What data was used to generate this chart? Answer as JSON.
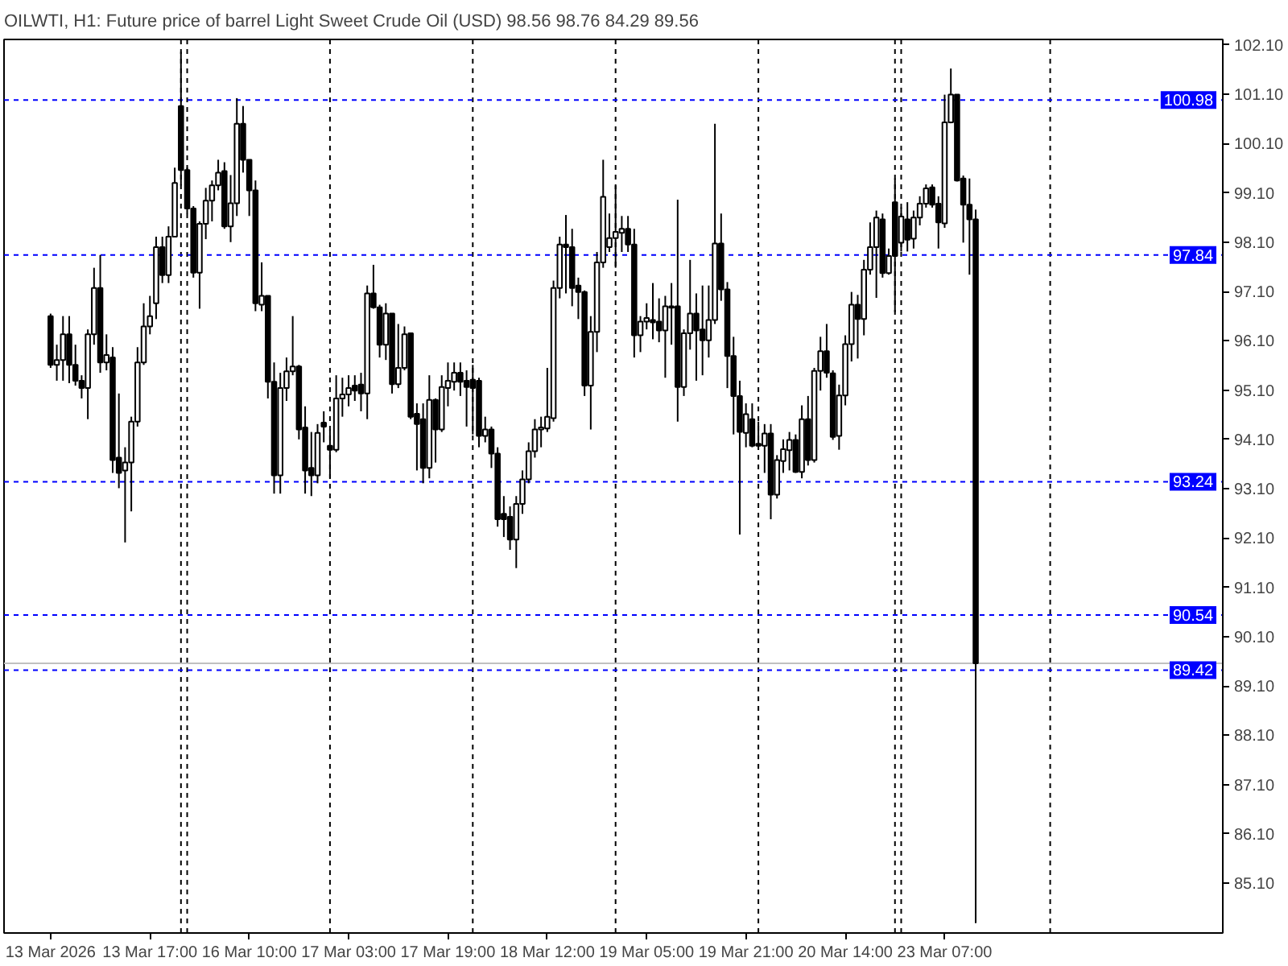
{
  "chart_data": {
    "type": "candlestick",
    "title": "OILWTI, H1: Future price of barrel Light Sweet Crude Oil (USD) 98.56 98.76 84.29 89.56",
    "color": "#000000",
    "categories": [
      "13 Mar 2026",
      null,
      null,
      null,
      null,
      null,
      null,
      null,
      null,
      null,
      null,
      null,
      null,
      null,
      null,
      null,
      "13 Mar 17:00",
      null,
      null,
      null,
      null,
      null,
      null,
      null,
      null,
      null,
      null,
      null,
      null,
      null,
      null,
      null,
      "16 Mar 10:00",
      null,
      null,
      null,
      null,
      null,
      null,
      null,
      null,
      null,
      null,
      null,
      null,
      null,
      null,
      null,
      "17 Mar 03:00",
      null,
      null,
      null,
      null,
      null,
      null,
      null,
      null,
      null,
      null,
      null,
      null,
      null,
      null,
      null,
      "17 Mar 19:00",
      null,
      null,
      null,
      null,
      null,
      null,
      null,
      null,
      null,
      null,
      null,
      null,
      null,
      null,
      null,
      "18 Mar 12:00",
      null,
      null,
      null,
      null,
      null,
      null,
      null,
      null,
      null,
      null,
      null,
      null,
      null,
      null,
      null,
      "19 Mar 05:00",
      null,
      null,
      null,
      null,
      null,
      null,
      null,
      null,
      null,
      null,
      null,
      null,
      null,
      null,
      null,
      "19 Mar 21:00",
      null,
      null,
      null,
      null,
      null,
      null,
      null,
      null,
      null,
      null,
      null,
      null,
      null,
      null,
      null,
      "20 Mar 14:00",
      null,
      null,
      null,
      null,
      null,
      null,
      null,
      null,
      null,
      null,
      null,
      null,
      null,
      null,
      null,
      "23 Mar 07:00",
      null,
      null,
      null,
      null,
      null,
      null,
      null,
      null,
      null,
      null,
      null,
      null,
      null,
      null,
      null,
      null,
      null,
      null,
      null,
      null,
      null,
      null,
      null,
      null,
      null,
      null,
      null,
      null,
      null,
      null,
      null,
      null,
      null,
      null,
      null,
      null,
      null,
      null,
      null,
      null,
      null,
      null,
      null,
      null
    ],
    "ohlc": [
      [
        96.6,
        96.65,
        95.55,
        95.61
      ],
      [
        95.61,
        96.02,
        95.29,
        95.71
      ],
      [
        95.71,
        96.6,
        95.29,
        96.23
      ],
      [
        96.23,
        96.6,
        95.24,
        95.61
      ],
      [
        95.61,
        96.02,
        95.19,
        95.29
      ],
      [
        95.29,
        95.4,
        94.93,
        95.14
      ],
      [
        95.14,
        96.33,
        94.51,
        96.23
      ],
      [
        96.23,
        97.58,
        96.02,
        97.17
      ],
      [
        97.17,
        97.84,
        95.45,
        95.66
      ],
      [
        95.66,
        96.23,
        95.5,
        95.81
      ],
      [
        95.76,
        95.97,
        93.42,
        93.68
      ],
      [
        93.73,
        95.03,
        93.11,
        93.42
      ],
      [
        93.47,
        93.94,
        92.01,
        93.63
      ],
      [
        93.63,
        94.56,
        92.64,
        94.46
      ],
      [
        94.46,
        95.97,
        94.36,
        95.66
      ],
      [
        95.66,
        96.86,
        95.61,
        96.39
      ],
      [
        96.39,
        97.01,
        96.23,
        96.6
      ],
      [
        96.86,
        98.21,
        96.54,
        98.0
      ],
      [
        98.0,
        98.21,
        97.27,
        97.43
      ],
      [
        97.43,
        98.42,
        97.27,
        98.21
      ],
      [
        98.21,
        99.61,
        98.21,
        99.3
      ],
      [
        100.86,
        101.96,
        99.25,
        99.56
      ],
      [
        99.56,
        99.61,
        98.68,
        98.78
      ],
      [
        98.78,
        98.83,
        97.38,
        97.48
      ],
      [
        97.48,
        98.52,
        96.75,
        98.47
      ],
      [
        98.47,
        99.2,
        98.16,
        98.94
      ],
      [
        98.94,
        99.35,
        98.52,
        99.25
      ],
      [
        99.25,
        99.77,
        99.15,
        99.51
      ],
      [
        99.54,
        99.72,
        98.37,
        98.42
      ],
      [
        98.42,
        99.46,
        98.1,
        98.89
      ],
      [
        98.89,
        101.02,
        98.63,
        100.5
      ],
      [
        100.5,
        100.86,
        99.51,
        99.77
      ],
      [
        99.77,
        99.77,
        98.63,
        99.15
      ],
      [
        99.15,
        99.35,
        96.7,
        96.86
      ],
      [
        96.83,
        97.69,
        96.7,
        97.01
      ],
      [
        97.01,
        97.01,
        94.93,
        95.27
      ],
      [
        95.27,
        95.66,
        93.0,
        93.37
      ],
      [
        93.37,
        95.45,
        93.0,
        95.14
      ],
      [
        95.14,
        95.76,
        94.88,
        95.48
      ],
      [
        95.48,
        96.6,
        95.4,
        95.58
      ],
      [
        95.58,
        95.61,
        94.1,
        94.3
      ],
      [
        94.34,
        94.77,
        93.0,
        93.47
      ],
      [
        93.52,
        94.25,
        92.95,
        93.37
      ],
      [
        93.37,
        94.41,
        93.21,
        94.23
      ],
      [
        94.44,
        94.67,
        94.04,
        94.36
      ],
      [
        93.97,
        94.3,
        93.31,
        93.89
      ],
      [
        93.89,
        95.4,
        93.84,
        94.93
      ],
      [
        94.93,
        95.35,
        94.56,
        95.01
      ],
      [
        95.01,
        95.4,
        94.77,
        95.14
      ],
      [
        95.19,
        95.4,
        94.88,
        95.09
      ],
      [
        95.21,
        95.45,
        94.67,
        95.03
      ],
      [
        95.03,
        97.22,
        94.51,
        97.06
      ],
      [
        97.06,
        97.64,
        96.75,
        96.78
      ],
      [
        96.78,
        96.83,
        95.76,
        96.02
      ],
      [
        96.02,
        96.86,
        95.71,
        96.65
      ],
      [
        96.65,
        96.65,
        95.03,
        95.22
      ],
      [
        95.22,
        96.44,
        95.14,
        95.55
      ],
      [
        95.55,
        96.39,
        95.5,
        96.23
      ],
      [
        96.25,
        96.25,
        94.51,
        94.56
      ],
      [
        94.62,
        94.83,
        93.47,
        94.41
      ],
      [
        94.51,
        94.83,
        93.21,
        93.52
      ],
      [
        93.52,
        95.4,
        93.31,
        94.9
      ],
      [
        94.9,
        94.93,
        93.63,
        94.3
      ],
      [
        94.3,
        95.4,
        94.25,
        95.16
      ],
      [
        95.14,
        95.66,
        94.77,
        95.29
      ],
      [
        95.27,
        95.66,
        95.09,
        95.45
      ],
      [
        95.45,
        95.66,
        94.98,
        95.27
      ],
      [
        95.29,
        95.5,
        94.36,
        95.16
      ],
      [
        95.31,
        95.61,
        94.2,
        95.14
      ],
      [
        95.29,
        95.35,
        93.94,
        94.17
      ],
      [
        94.17,
        94.56,
        94.04,
        94.3
      ],
      [
        94.3,
        94.36,
        93.52,
        93.81
      ],
      [
        93.81,
        93.94,
        92.33,
        92.48
      ],
      [
        92.59,
        92.95,
        92.12,
        92.48
      ],
      [
        92.53,
        92.74,
        91.86,
        92.07
      ],
      [
        92.07,
        92.95,
        91.49,
        92.79
      ],
      [
        92.79,
        93.47,
        92.59,
        93.29
      ],
      [
        93.29,
        94.04,
        93.21,
        93.86
      ],
      [
        93.86,
        94.51,
        93.73,
        94.3
      ],
      [
        94.3,
        94.56,
        93.94,
        94.34
      ],
      [
        94.32,
        95.55,
        94.25,
        94.56
      ],
      [
        94.53,
        97.32,
        94.46,
        97.17
      ],
      [
        97.17,
        98.21,
        96.96,
        98.05
      ],
      [
        98.05,
        98.65,
        97.06,
        98.0
      ],
      [
        98.0,
        98.37,
        96.8,
        97.17
      ],
      [
        97.22,
        97.38,
        96.54,
        97.09
      ],
      [
        97.09,
        97.12,
        94.98,
        95.19
      ],
      [
        95.19,
        96.6,
        94.3,
        96.28
      ],
      [
        96.28,
        97.9,
        95.87,
        97.69
      ],
      [
        97.69,
        99.77,
        97.58,
        99.02
      ],
      [
        98.0,
        98.68,
        97.9,
        98.18
      ],
      [
        98.18,
        99.25,
        97.58,
        98.31
      ],
      [
        98.29,
        98.63,
        97.9,
        98.37
      ],
      [
        98.37,
        98.63,
        97.9,
        98.05
      ],
      [
        98.05,
        98.37,
        95.76,
        96.21
      ],
      [
        96.21,
        96.6,
        95.87,
        96.49
      ],
      [
        96.49,
        96.86,
        96.33,
        96.56
      ],
      [
        96.52,
        97.27,
        96.13,
        96.47
      ],
      [
        96.49,
        96.96,
        96.07,
        96.31
      ],
      [
        96.31,
        97.01,
        95.35,
        96.8
      ],
      [
        96.77,
        97.27,
        96.02,
        96.8
      ],
      [
        96.8,
        98.96,
        94.46,
        95.16
      ],
      [
        95.16,
        96.33,
        94.98,
        96.25
      ],
      [
        96.25,
        97.74,
        95.92,
        96.65
      ],
      [
        96.65,
        97.06,
        95.29,
        96.31
      ],
      [
        96.33,
        97.22,
        95.4,
        96.11
      ],
      [
        96.11,
        97.22,
        95.76,
        96.52
      ],
      [
        96.52,
        100.5,
        96.44,
        98.07
      ],
      [
        98.07,
        98.68,
        96.91,
        97.14
      ],
      [
        97.14,
        97.29,
        95.14,
        95.79
      ],
      [
        95.79,
        96.18,
        94.2,
        94.98
      ],
      [
        94.98,
        95.29,
        92.17,
        94.25
      ],
      [
        94.23,
        94.83,
        93.94,
        94.61
      ],
      [
        94.51,
        94.83,
        93.94,
        93.97
      ],
      [
        94.01,
        94.46,
        93.94,
        93.97
      ],
      [
        93.97,
        94.41,
        93.42,
        94.22
      ],
      [
        94.22,
        94.41,
        92.48,
        92.98
      ],
      [
        92.98,
        93.78,
        92.9,
        93.68
      ],
      [
        93.66,
        94.1,
        93.42,
        93.9
      ],
      [
        93.88,
        94.25,
        93.47,
        94.09
      ],
      [
        94.09,
        94.2,
        93.42,
        93.44
      ],
      [
        93.44,
        94.79,
        93.31,
        94.51
      ],
      [
        94.51,
        94.98,
        93.57,
        93.68
      ],
      [
        93.68,
        95.55,
        93.63,
        95.49
      ],
      [
        95.49,
        96.18,
        95.09,
        95.89
      ],
      [
        95.89,
        96.44,
        95.35,
        95.45
      ],
      [
        95.44,
        95.5,
        94.09,
        94.15
      ],
      [
        94.17,
        95.21,
        93.89,
        94.99
      ],
      [
        94.99,
        96.21,
        94.79,
        96.03
      ],
      [
        96.03,
        97.09,
        95.68,
        96.83
      ],
      [
        96.83,
        97.03,
        95.74,
        96.54
      ],
      [
        96.54,
        97.74,
        96.21,
        97.54
      ],
      [
        97.54,
        98.5,
        97.44,
        98.0
      ],
      [
        98.0,
        98.74,
        96.97,
        98.6
      ],
      [
        98.56,
        98.68,
        97.38,
        97.47
      ],
      [
        97.47,
        97.97,
        97.44,
        97.82
      ],
      [
        98.91,
        99.39,
        96.68,
        97.82
      ],
      [
        98.09,
        98.8,
        97.91,
        98.62
      ],
      [
        98.56,
        98.91,
        97.91,
        98.15
      ],
      [
        98.17,
        98.74,
        97.97,
        98.6
      ],
      [
        98.6,
        99.03,
        98.44,
        98.88
      ],
      [
        98.88,
        99.27,
        98.8,
        99.19
      ],
      [
        99.21,
        99.27,
        98.8,
        98.86
      ],
      [
        98.88,
        99.03,
        97.97,
        98.5
      ],
      [
        98.48,
        101.09,
        98.39,
        100.53
      ],
      [
        100.53,
        101.62,
        100.51,
        101.09
      ],
      [
        101.09,
        101.09,
        99.33,
        99.35
      ],
      [
        99.39,
        99.45,
        98.09,
        98.86
      ],
      [
        98.86,
        99.39,
        97.44,
        98.56
      ],
      [
        98.56,
        98.76,
        84.29,
        89.56
      ],
      null,
      null,
      null,
      null,
      null,
      null,
      null,
      null,
      null,
      null,
      null,
      null,
      null,
      null,
      null,
      null,
      null,
      null,
      null,
      null,
      null,
      null,
      null,
      null,
      null,
      null,
      null,
      null,
      null,
      null,
      null,
      null,
      null,
      null,
      null,
      null,
      null,
      null,
      null
    ],
    "ylim": [
      84.09,
      102.21
    ],
    "yticks": [
      {
        "value": 85.1,
        "label": "85.10"
      },
      {
        "value": 86.1,
        "label": "86.10"
      },
      {
        "value": 87.1,
        "label": "87.10"
      },
      {
        "value": 88.1,
        "label": "88.10"
      },
      {
        "value": 89.1,
        "label": "89.10"
      },
      {
        "value": 90.1,
        "label": "90.10"
      },
      {
        "value": 91.1,
        "label": "91.10"
      },
      {
        "value": 92.1,
        "label": "92.10"
      },
      {
        "value": 93.1,
        "label": "93.10"
      },
      {
        "value": 94.1,
        "label": "94.10"
      },
      {
        "value": 95.1,
        "label": "95.10"
      },
      {
        "value": 96.1,
        "label": "96.10"
      },
      {
        "value": 97.1,
        "label": "97.10"
      },
      {
        "value": 98.1,
        "label": "98.10"
      },
      {
        "value": 99.1,
        "label": "99.10"
      },
      {
        "value": 100.1,
        "label": "100.10"
      },
      {
        "value": 101.1,
        "label": "101.10"
      },
      {
        "value": 102.1,
        "label": "102.10"
      }
    ],
    "ref_lines": [
      {
        "axis": "y",
        "value": 100.98,
        "label": "100.98",
        "color": "#0000ff",
        "line_style": "dashed"
      },
      {
        "axis": "y",
        "value": 97.84,
        "label": "97.84",
        "color": "#0000ff",
        "line_style": "dashed"
      },
      {
        "axis": "y",
        "value": 93.24,
        "label": "93.24",
        "color": "#0000ff",
        "line_style": "dashed"
      },
      {
        "axis": "y",
        "value": 90.54,
        "label": "90.54",
        "color": "#0000ff",
        "line_style": "dashed"
      },
      {
        "axis": "y",
        "value": 89.42,
        "label": "89.42",
        "color": "#0000ff",
        "line_style": "dashed"
      },
      {
        "axis": "y",
        "value": 89.56,
        "color": "#c0c0c0",
        "line_style": "solid"
      }
    ]
  }
}
